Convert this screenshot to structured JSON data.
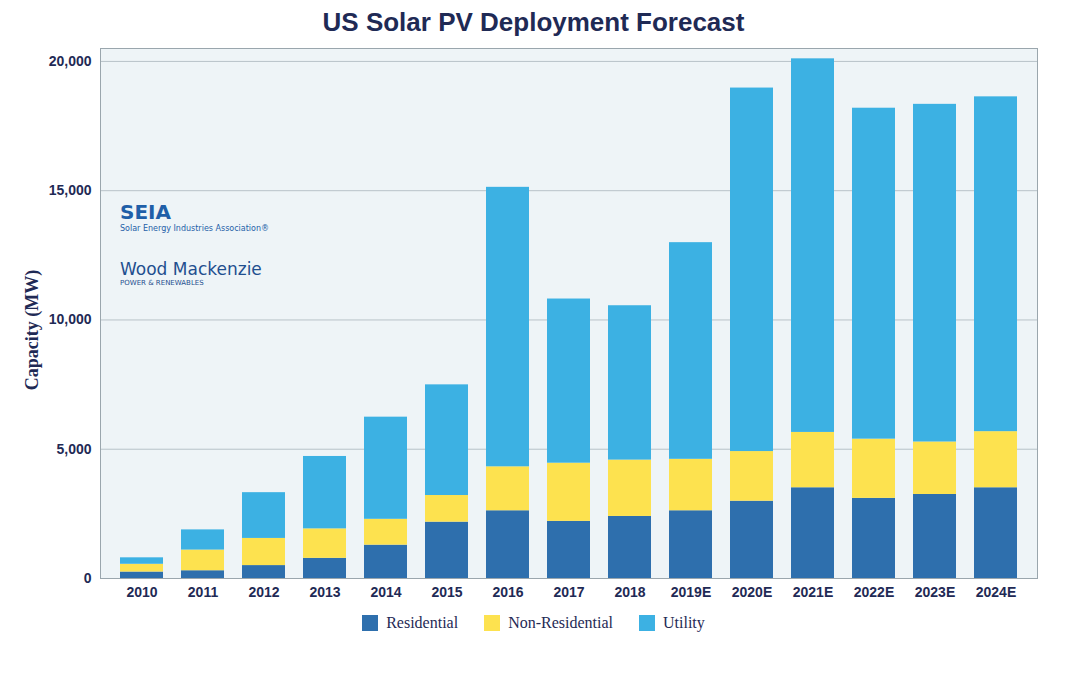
{
  "chart_data": {
    "type": "bar",
    "title": "US Solar PV Deployment Forecast",
    "y_label": "Capacity (MW)",
    "annotations": [
      "SEIA",
      "Solar Energy Industries Association®",
      "Wood Mackenzie",
      "POWER & RENEWABLES"
    ],
    "categories": [
      "2010",
      "2011",
      "2012",
      "2013",
      "2014",
      "2015",
      "2016",
      "2017",
      "2018",
      "2019E",
      "2020E",
      "2021E",
      "2022E",
      "2023E",
      "2024E"
    ],
    "series": [
      {
        "name": "Residential",
        "color": "#2e6fad",
        "values": [
          250,
          300,
          500,
          780,
          1290,
          2180,
          2620,
          2210,
          2400,
          2620,
          2990,
          3510,
          3100,
          3250,
          3510
        ]
      },
      {
        "name": "Non-Residential",
        "color": "#fde24f",
        "values": [
          300,
          800,
          1050,
          1140,
          1000,
          1030,
          1700,
          2250,
          2180,
          1990,
          1920,
          2140,
          2290,
          2030,
          2170
        ]
      },
      {
        "name": "Utility",
        "color": "#3cb1e3",
        "values": [
          250,
          780,
          1770,
          2800,
          3950,
          4280,
          10810,
          6350,
          5970,
          8380,
          14060,
          14450,
          12800,
          13060,
          12950
        ]
      }
    ],
    "stacked": true,
    "ylim": [
      0,
      20500
    ],
    "yticks": [
      0,
      {
        "value": 5000,
        "label": "5,000"
      },
      {
        "value": 10000,
        "label": "10,000"
      },
      {
        "value": 15000,
        "label": "15,000"
      },
      {
        "value": 20000,
        "label": "20,000"
      }
    ],
    "grid": true,
    "legend": "bottom"
  }
}
